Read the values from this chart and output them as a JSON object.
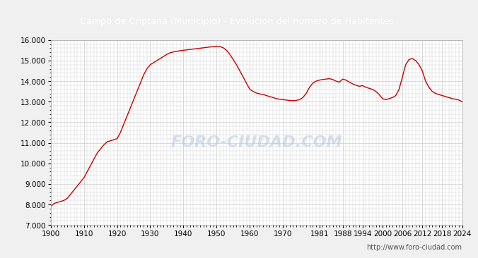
{
  "title": "Campo de Criptana (Municipio) - Evolucion del numero de Habitantes",
  "title_color": "white",
  "title_bg_color": "#4a7bc4",
  "footer": "http://www.foro-ciudad.com",
  "line_color": "#cc0000",
  "bg_color": "#f0f0f0",
  "plot_bg_color": "white",
  "grid_color": "#cccccc",
  "ylim": [
    7000,
    16000
  ],
  "yticks": [
    7000,
    8000,
    9000,
    10000,
    11000,
    12000,
    13000,
    14000,
    15000,
    16000
  ],
  "xtick_labels": [
    "1900",
    "1910",
    "1920",
    "1930",
    "1940",
    "1950",
    "1960",
    "1970",
    "1981",
    "1988",
    "1994",
    "2000",
    "2006",
    "2012",
    "2018",
    "2024"
  ],
  "watermark": "FORO-CIUDAD.COM",
  "data": [
    [
      1900,
      7900
    ],
    [
      1901,
      8050
    ],
    [
      1902,
      8100
    ],
    [
      1903,
      8150
    ],
    [
      1904,
      8200
    ],
    [
      1905,
      8300
    ],
    [
      1906,
      8500
    ],
    [
      1907,
      8700
    ],
    [
      1908,
      8900
    ],
    [
      1909,
      9100
    ],
    [
      1910,
      9300
    ],
    [
      1911,
      9600
    ],
    [
      1912,
      9900
    ],
    [
      1913,
      10200
    ],
    [
      1914,
      10500
    ],
    [
      1915,
      10700
    ],
    [
      1916,
      10900
    ],
    [
      1917,
      11050
    ],
    [
      1918,
      11100
    ],
    [
      1919,
      11150
    ],
    [
      1920,
      11200
    ],
    [
      1921,
      11500
    ],
    [
      1922,
      11900
    ],
    [
      1923,
      12300
    ],
    [
      1924,
      12700
    ],
    [
      1925,
      13100
    ],
    [
      1926,
      13500
    ],
    [
      1927,
      13900
    ],
    [
      1928,
      14300
    ],
    [
      1929,
      14600
    ],
    [
      1930,
      14800
    ],
    [
      1931,
      14900
    ],
    [
      1932,
      15000
    ],
    [
      1933,
      15100
    ],
    [
      1934,
      15200
    ],
    [
      1935,
      15300
    ],
    [
      1936,
      15380
    ],
    [
      1937,
      15420
    ],
    [
      1938,
      15450
    ],
    [
      1939,
      15480
    ],
    [
      1940,
      15500
    ],
    [
      1941,
      15520
    ],
    [
      1942,
      15540
    ],
    [
      1943,
      15560
    ],
    [
      1944,
      15580
    ],
    [
      1945,
      15600
    ],
    [
      1946,
      15620
    ],
    [
      1947,
      15640
    ],
    [
      1948,
      15660
    ],
    [
      1949,
      15680
    ],
    [
      1950,
      15700
    ],
    [
      1951,
      15680
    ],
    [
      1952,
      15620
    ],
    [
      1953,
      15500
    ],
    [
      1954,
      15300
    ],
    [
      1955,
      15050
    ],
    [
      1956,
      14800
    ],
    [
      1957,
      14500
    ],
    [
      1958,
      14200
    ],
    [
      1959,
      13900
    ],
    [
      1960,
      13600
    ],
    [
      1961,
      13500
    ],
    [
      1962,
      13420
    ],
    [
      1963,
      13380
    ],
    [
      1964,
      13350
    ],
    [
      1965,
      13300
    ],
    [
      1966,
      13250
    ],
    [
      1967,
      13200
    ],
    [
      1968,
      13150
    ],
    [
      1969,
      13120
    ],
    [
      1970,
      13100
    ],
    [
      1971,
      13080
    ],
    [
      1972,
      13060
    ],
    [
      1973,
      13050
    ],
    [
      1974,
      13060
    ],
    [
      1975,
      13100
    ],
    [
      1976,
      13200
    ],
    [
      1977,
      13400
    ],
    [
      1978,
      13700
    ],
    [
      1979,
      13900
    ],
    [
      1980,
      14000
    ],
    [
      1981,
      14050
    ],
    [
      1982,
      14080
    ],
    [
      1983,
      14100
    ],
    [
      1984,
      14120
    ],
    [
      1985,
      14080
    ],
    [
      1986,
      14000
    ],
    [
      1987,
      13950
    ],
    [
      1988,
      14100
    ],
    [
      1989,
      14050
    ],
    [
      1990,
      13950
    ],
    [
      1991,
      13870
    ],
    [
      1992,
      13800
    ],
    [
      1993,
      13750
    ],
    [
      1994,
      13780
    ],
    [
      1995,
      13700
    ],
    [
      1996,
      13650
    ],
    [
      1997,
      13600
    ],
    [
      1998,
      13500
    ],
    [
      1999,
      13350
    ],
    [
      2000,
      13150
    ],
    [
      2001,
      13100
    ],
    [
      2002,
      13150
    ],
    [
      2003,
      13200
    ],
    [
      2004,
      13300
    ],
    [
      2005,
      13600
    ],
    [
      2006,
      14200
    ],
    [
      2007,
      14800
    ],
    [
      2008,
      15050
    ],
    [
      2009,
      15100
    ],
    [
      2010,
      15000
    ],
    [
      2011,
      14800
    ],
    [
      2012,
      14500
    ],
    [
      2013,
      14000
    ],
    [
      2014,
      13700
    ],
    [
      2015,
      13500
    ],
    [
      2016,
      13400
    ],
    [
      2017,
      13350
    ],
    [
      2018,
      13300
    ],
    [
      2019,
      13250
    ],
    [
      2020,
      13200
    ],
    [
      2021,
      13150
    ],
    [
      2022,
      13120
    ],
    [
      2023,
      13080
    ],
    [
      2024,
      13000
    ]
  ]
}
